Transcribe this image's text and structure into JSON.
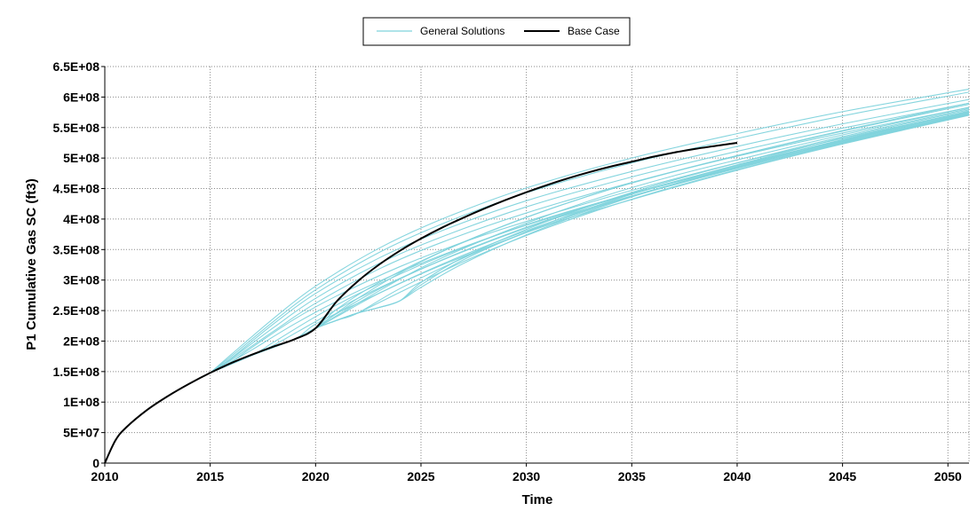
{
  "chart_data": {
    "type": "line",
    "title": "",
    "xlabel": "Time",
    "ylabel": "P1 Cumulative Gas SC (ft3)",
    "xlim": [
      2010,
      2051
    ],
    "ylim": [
      0,
      650000000
    ],
    "x_ticks": [
      2010,
      2015,
      2020,
      2025,
      2030,
      2035,
      2040,
      2045,
      2050
    ],
    "x_tick_labels": [
      "2010",
      "2015",
      "2020",
      "2025",
      "2030",
      "2035",
      "2040",
      "2045",
      "2050"
    ],
    "y_ticks": [
      0,
      50000000,
      100000000,
      150000000,
      200000000,
      250000000,
      300000000,
      350000000,
      400000000,
      450000000,
      500000000,
      550000000,
      600000000,
      650000000
    ],
    "y_tick_labels": [
      "0",
      "5E+07",
      "1E+08",
      "1.5E+08",
      "2E+08",
      "2.5E+08",
      "3E+08",
      "3.5E+08",
      "4E+08",
      "4.5E+08",
      "5E+08",
      "5.5E+08",
      "6E+08",
      "6.5E+08"
    ],
    "grid": true,
    "legend_position": "top-center",
    "legend": [
      {
        "label": "General Solutions",
        "color": "#7fd3dc"
      },
      {
        "label": "Base Case",
        "color": "#000000"
      }
    ],
    "series": [
      {
        "name": "Base Case",
        "color": "#000000",
        "x": [
          2010,
          2010.5,
          2011,
          2012,
          2013,
          2014,
          2015,
          2016,
          2017,
          2018,
          2019,
          2020,
          2021,
          2022,
          2023,
          2024,
          2025,
          2026,
          2027,
          2028,
          2029,
          2030,
          2031,
          2032,
          2033,
          2034,
          2035,
          2036,
          2037,
          2038,
          2039,
          2040
        ],
        "y": [
          0,
          37000000,
          58000000,
          87000000,
          110000000,
          130000000,
          148000000,
          164000000,
          178000000,
          191000000,
          203000000,
          221000000,
          265000000,
          298000000,
          325000000,
          348000000,
          368000000,
          386000000,
          402000000,
          417000000,
          431000000,
          444000000,
          456000000,
          467000000,
          477000000,
          486000000,
          494000000,
          502000000,
          509000000,
          515000000,
          520000000,
          525000000
        ]
      },
      {
        "name": "General Solutions",
        "color": "#7fd3dc",
        "curves": [
          {
            "x": [
              2015,
              2016,
              2018,
              2020,
              2023,
              2026,
              2030,
              2035,
              2040,
              2045,
              2051
            ],
            "y": [
              148000000,
              172000000,
              228000000,
              278000000,
              336000000,
              381000000,
              430000000,
              478000000,
              519000000,
              556000000,
              596000000
            ]
          },
          {
            "x": [
              2015,
              2016,
              2018,
              2020,
              2023,
              2026,
              2030,
              2035,
              2040,
              2045,
              2051
            ],
            "y": [
              148000000,
              175000000,
              232000000,
              284000000,
              345000000,
              392000000,
              443000000,
              492000000,
              532000000,
              569000000,
              608000000
            ]
          },
          {
            "x": [
              2015,
              2016,
              2018,
              2020,
              2023,
              2026,
              2030,
              2035,
              2040,
              2045,
              2051
            ],
            "y": [
              148000000,
              178000000,
              237000000,
              290000000,
              352000000,
              400000000,
              451000000,
              500000000,
              540000000,
              576000000,
              613000000
            ]
          },
          {
            "x": [
              2015,
              2016,
              2018,
              2020,
              2023,
              2026,
              2030,
              2035,
              2040,
              2045,
              2051
            ],
            "y": [
              148000000,
              171000000,
              222000000,
              270000000,
              327000000,
              371000000,
              420000000,
              469000000,
              511000000,
              549000000,
              590000000
            ]
          },
          {
            "x": [
              2015,
              2016,
              2018,
              2020,
              2023,
              2026,
              2030,
              2035,
              2040,
              2045,
              2051
            ],
            "y": [
              148000000,
              169000000,
              216000000,
              262000000,
              318000000,
              362000000,
              410000000,
              460000000,
              503000000,
              541000000,
              583000000
            ]
          },
          {
            "x": [
              2015,
              2016,
              2017,
              2019,
              2021,
              2024,
              2027,
              2030,
              2035,
              2040,
              2045,
              2051
            ],
            "y": [
              148000000,
              166000000,
              190000000,
              236000000,
              274000000,
              322000000,
              362000000,
              396000000,
              447000000,
              492000000,
              532000000,
              576000000
            ]
          },
          {
            "x": [
              2015,
              2016,
              2017,
              2019,
              2021,
              2024,
              2027,
              2030,
              2035,
              2040,
              2045,
              2051
            ],
            "y": [
              148000000,
              166000000,
              186000000,
              228000000,
              265000000,
              313000000,
              354000000,
              390000000,
              442000000,
              488000000,
              529000000,
              573000000
            ]
          },
          {
            "x": [
              2015,
              2017,
              2018,
              2020,
              2022,
              2025,
              2028,
              2031,
              2035,
              2040,
              2045,
              2051
            ],
            "y": [
              148000000,
              177000000,
              198000000,
              240000000,
              277000000,
              325000000,
              366000000,
              402000000,
              442000000,
              488000000,
              530000000,
              575000000
            ]
          },
          {
            "x": [
              2015,
              2017,
              2018,
              2020,
              2022,
              2025,
              2028,
              2031,
              2035,
              2040,
              2045,
              2051
            ],
            "y": [
              148000000,
              177000000,
              193000000,
              232000000,
              270000000,
              318000000,
              360000000,
              397000000,
              438000000,
              485000000,
              528000000,
              574000000
            ]
          },
          {
            "x": [
              2015,
              2017,
              2019,
              2020,
              2022,
              2025,
              2028,
              2031,
              2035,
              2040,
              2045,
              2051
            ],
            "y": [
              148000000,
              177000000,
              203000000,
              228000000,
              262000000,
              310000000,
              352000000,
              390000000,
              432000000,
              480000000,
              523000000,
              570000000
            ]
          },
          {
            "x": [
              2015,
              2017,
              2019,
              2020,
              2021,
              2023,
              2026,
              2029,
              2032,
              2035,
              2040,
              2045,
              2051
            ],
            "y": [
              148000000,
              177000000,
              203000000,
              221000000,
              245000000,
              285000000,
              333000000,
              374000000,
              410000000,
              441000000,
              486000000,
              527000000,
              572000000
            ]
          },
          {
            "x": [
              2015,
              2017,
              2019,
              2020,
              2021,
              2023,
              2026,
              2029,
              2032,
              2035,
              2040,
              2045,
              2051
            ],
            "y": [
              148000000,
              177000000,
              203000000,
              221000000,
              240000000,
              278000000,
              326000000,
              368000000,
              405000000,
              437000000,
              483000000,
              525000000,
              571000000
            ]
          },
          {
            "x": [
              2015,
              2017,
              2019,
              2020,
              2021,
              2023,
              2026,
              2029,
              2032,
              2035,
              2040,
              2045,
              2051
            ],
            "y": [
              148000000,
              177000000,
              203000000,
              221000000,
              252000000,
              296000000,
              347000000,
              390000000,
              427000000,
              459000000,
              504000000,
              545000000,
              590000000
            ]
          },
          {
            "x": [
              2015,
              2017,
              2019,
              2020,
              2021,
              2022,
              2024,
              2027,
              2030,
              2033,
              2036,
              2040,
              2045,
              2051
            ],
            "y": [
              148000000,
              177000000,
              203000000,
              221000000,
              234000000,
              246000000,
              286000000,
              336000000,
              378000000,
              415000000,
              447000000,
              484000000,
              526000000,
              572000000
            ]
          },
          {
            "x": [
              2015,
              2017,
              2019,
              2020,
              2021,
              2022,
              2024,
              2027,
              2030,
              2033,
              2036,
              2040,
              2045,
              2051
            ],
            "y": [
              148000000,
              177000000,
              203000000,
              221000000,
              234000000,
              246000000,
              280000000,
              330000000,
              373000000,
              410000000,
              443000000,
              481000000,
              524000000,
              571000000
            ]
          },
          {
            "x": [
              2015,
              2017,
              2019,
              2020,
              2021,
              2022,
              2023,
              2024,
              2025,
              2027,
              2030,
              2033,
              2036,
              2040,
              2045,
              2051
            ],
            "y": [
              148000000,
              177000000,
              203000000,
              221000000,
              234000000,
              246000000,
              255000000,
              266000000,
              296000000,
              337000000,
              383000000,
              421000000,
              454000000,
              492000000,
              535000000,
              581000000
            ]
          },
          {
            "x": [
              2015,
              2017,
              2019,
              2020,
              2021,
              2022,
              2023,
              2024,
              2025,
              2027,
              2030,
              2033,
              2036,
              2040,
              2045,
              2051
            ],
            "y": [
              148000000,
              177000000,
              203000000,
              221000000,
              234000000,
              246000000,
              255000000,
              266000000,
              292000000,
              333000000,
              379000000,
              418000000,
              451000000,
              489000000,
              533000000,
              579000000
            ]
          },
          {
            "x": [
              2015,
              2017,
              2019,
              2020,
              2021,
              2022,
              2023,
              2024,
              2025,
              2027,
              2030,
              2033,
              2036,
              2040,
              2045,
              2051
            ],
            "y": [
              148000000,
              177000000,
              203000000,
              221000000,
              234000000,
              246000000,
              255000000,
              266000000,
              288000000,
              327000000,
              374000000,
              413000000,
              447000000,
              486000000,
              530000000,
              577000000
            ]
          },
          {
            "x": [
              2015,
              2017,
              2019,
              2020,
              2022,
              2025,
              2028,
              2031,
              2034,
              2037,
              2040,
              2045,
              2051
            ],
            "y": [
              148000000,
              177000000,
              203000000,
              221000000,
              270000000,
              330000000,
              376000000,
              415000000,
              449000000,
              478000000,
              504000000,
              544000000,
              588000000
            ]
          },
          {
            "x": [
              2015,
              2017,
              2019,
              2020,
              2022,
              2025,
              2028,
              2031,
              2034,
              2037,
              2040,
              2045,
              2051
            ],
            "y": [
              148000000,
              177000000,
              203000000,
              221000000,
              262000000,
              320000000,
              366000000,
              406000000,
              441000000,
              471000000,
              497000000,
              538000000,
              583000000
            ]
          }
        ]
      }
    ]
  }
}
